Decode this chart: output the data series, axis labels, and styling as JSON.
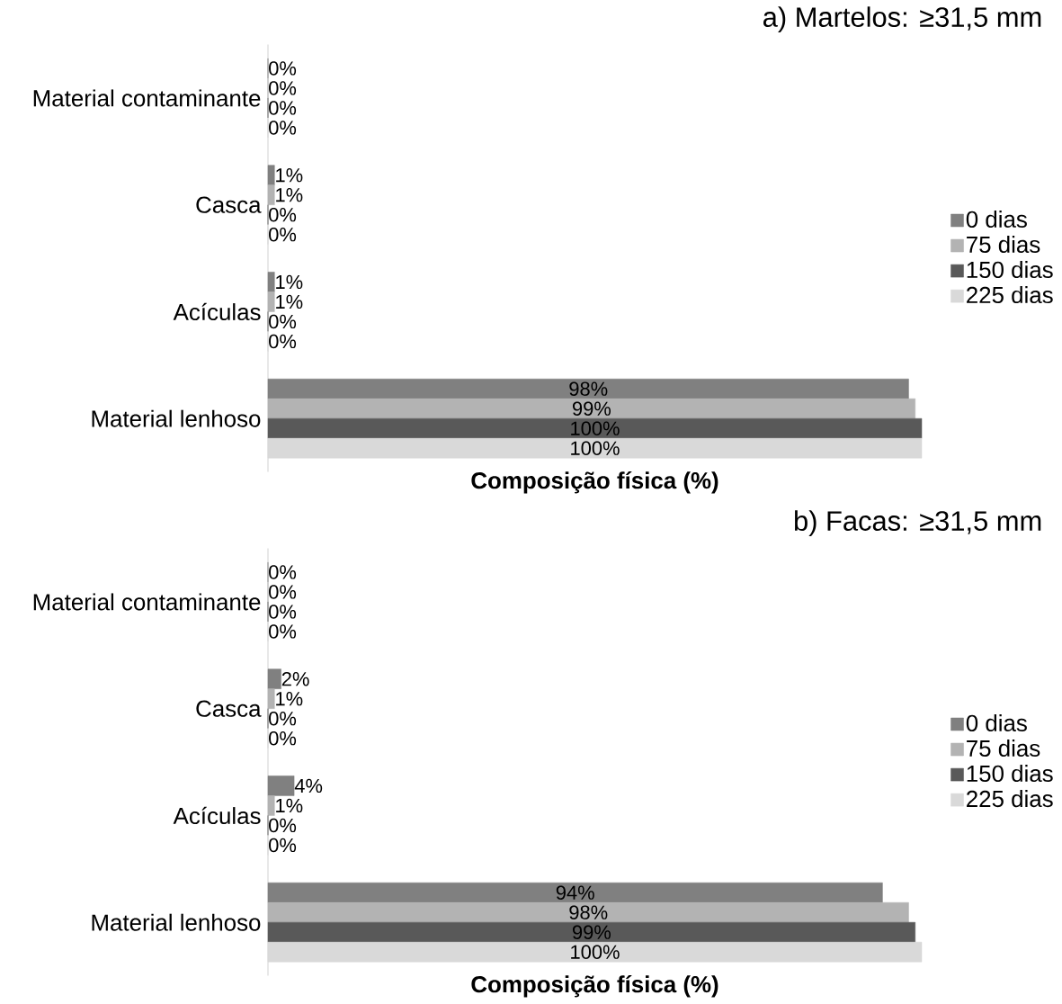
{
  "chart_data": [
    {
      "type": "bar",
      "orientation": "horizontal",
      "title": "a) Martelos: ≥31,5 mm",
      "xlabel": "Composição física (%)",
      "categories": [
        "Material contaminante",
        "Casca",
        "Acículas",
        "Material lenhoso"
      ],
      "xlim": [
        0,
        100
      ],
      "tick_labels": "y",
      "legend": "right",
      "series": [
        {
          "name": "0 dias",
          "color": "#808080",
          "values": [
            0,
            1,
            1,
            98
          ],
          "value_labels": [
            "0%",
            "1%",
            "1%",
            "98%"
          ]
        },
        {
          "name": "75 dias",
          "color": "#b3b3b3",
          "values": [
            0,
            1,
            1,
            99
          ],
          "value_labels": [
            "0%",
            "1%",
            "1%",
            "99%"
          ]
        },
        {
          "name": "150 dias",
          "color": "#595959",
          "values": [
            0,
            0,
            0,
            100
          ],
          "value_labels": [
            "0%",
            "0%",
            "0%",
            "100%"
          ]
        },
        {
          "name": "225 dias",
          "color": "#d9d9d9",
          "values": [
            0,
            0,
            0,
            100
          ],
          "value_labels": [
            "0%",
            "0%",
            "0%",
            "100%"
          ]
        }
      ]
    },
    {
      "type": "bar",
      "orientation": "horizontal",
      "title": "b) Facas: ≥31,5 mm",
      "xlabel": "Composição física (%)",
      "categories": [
        "Material contaminante",
        "Casca",
        "Acículas",
        "Material lenhoso"
      ],
      "xlim": [
        0,
        100
      ],
      "tick_labels": "y",
      "legend": "right",
      "series": [
        {
          "name": "0 dias",
          "color": "#808080",
          "values": [
            0,
            2,
            4,
            94
          ],
          "value_labels": [
            "0%",
            "2%",
            "4%",
            "94%"
          ]
        },
        {
          "name": "75 dias",
          "color": "#b3b3b3",
          "values": [
            0,
            1,
            1,
            98
          ],
          "value_labels": [
            "0%",
            "1%",
            "1%",
            "98%"
          ]
        },
        {
          "name": "150 dias",
          "color": "#595959",
          "values": [
            0,
            0,
            0,
            99
          ],
          "value_labels": [
            "0%",
            "0%",
            "0%",
            "99%"
          ]
        },
        {
          "name": "225 dias",
          "color": "#d9d9d9",
          "values": [
            0,
            0,
            0,
            100
          ],
          "value_labels": [
            "0%",
            "0%",
            "0%",
            "100%"
          ]
        }
      ]
    }
  ]
}
